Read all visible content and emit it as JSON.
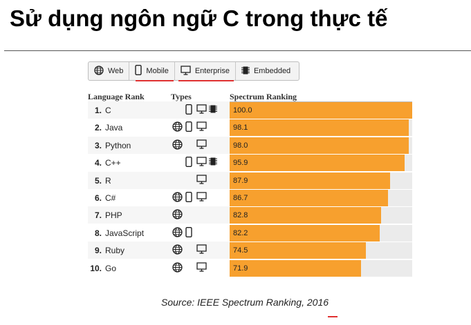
{
  "slide": {
    "title": "Sử dụng ngôn ngữ C trong thực tế",
    "source": "Source: IEEE Spectrum Ranking, 2016"
  },
  "filters": [
    {
      "label": "Web",
      "icon": "globe-icon"
    },
    {
      "label": "Mobile",
      "icon": "mobile-icon"
    },
    {
      "label": "Enterprise",
      "icon": "desktop-icon"
    },
    {
      "label": "Embedded",
      "icon": "chip-icon"
    }
  ],
  "table": {
    "col_rank": "Language Rank",
    "col_types": "Types",
    "col_ranking": "Spectrum Ranking"
  },
  "colors": {
    "bar": "#f7a02e",
    "underline": "#e03030"
  },
  "chart_data": {
    "type": "bar",
    "title": "",
    "categories": [
      "C",
      "Java",
      "Python",
      "C++",
      "R",
      "C#",
      "PHP",
      "JavaScript",
      "Ruby",
      "Go"
    ],
    "ranks": [
      "1.",
      "2.",
      "3.",
      "4.",
      "5.",
      "6.",
      "7.",
      "8.",
      "9.",
      "10."
    ],
    "values": [
      100.0,
      98.1,
      98.0,
      95.9,
      87.9,
      86.7,
      82.8,
      82.2,
      74.5,
      71.9
    ],
    "value_labels": [
      "100.0",
      "98.1",
      "98.0",
      "95.9",
      "87.9",
      "86.7",
      "82.8",
      "82.2",
      "74.5",
      "71.9"
    ],
    "types": [
      [
        "mobile",
        "enterprise",
        "embedded"
      ],
      [
        "web",
        "mobile",
        "enterprise"
      ],
      [
        "web",
        "enterprise"
      ],
      [
        "mobile",
        "enterprise",
        "embedded"
      ],
      [
        "enterprise"
      ],
      [
        "web",
        "mobile",
        "enterprise"
      ],
      [
        "web"
      ],
      [
        "web",
        "mobile"
      ],
      [
        "web",
        "enterprise"
      ],
      [
        "web",
        "enterprise"
      ]
    ],
    "xlim": [
      0,
      100
    ],
    "orientation": "horizontal"
  }
}
